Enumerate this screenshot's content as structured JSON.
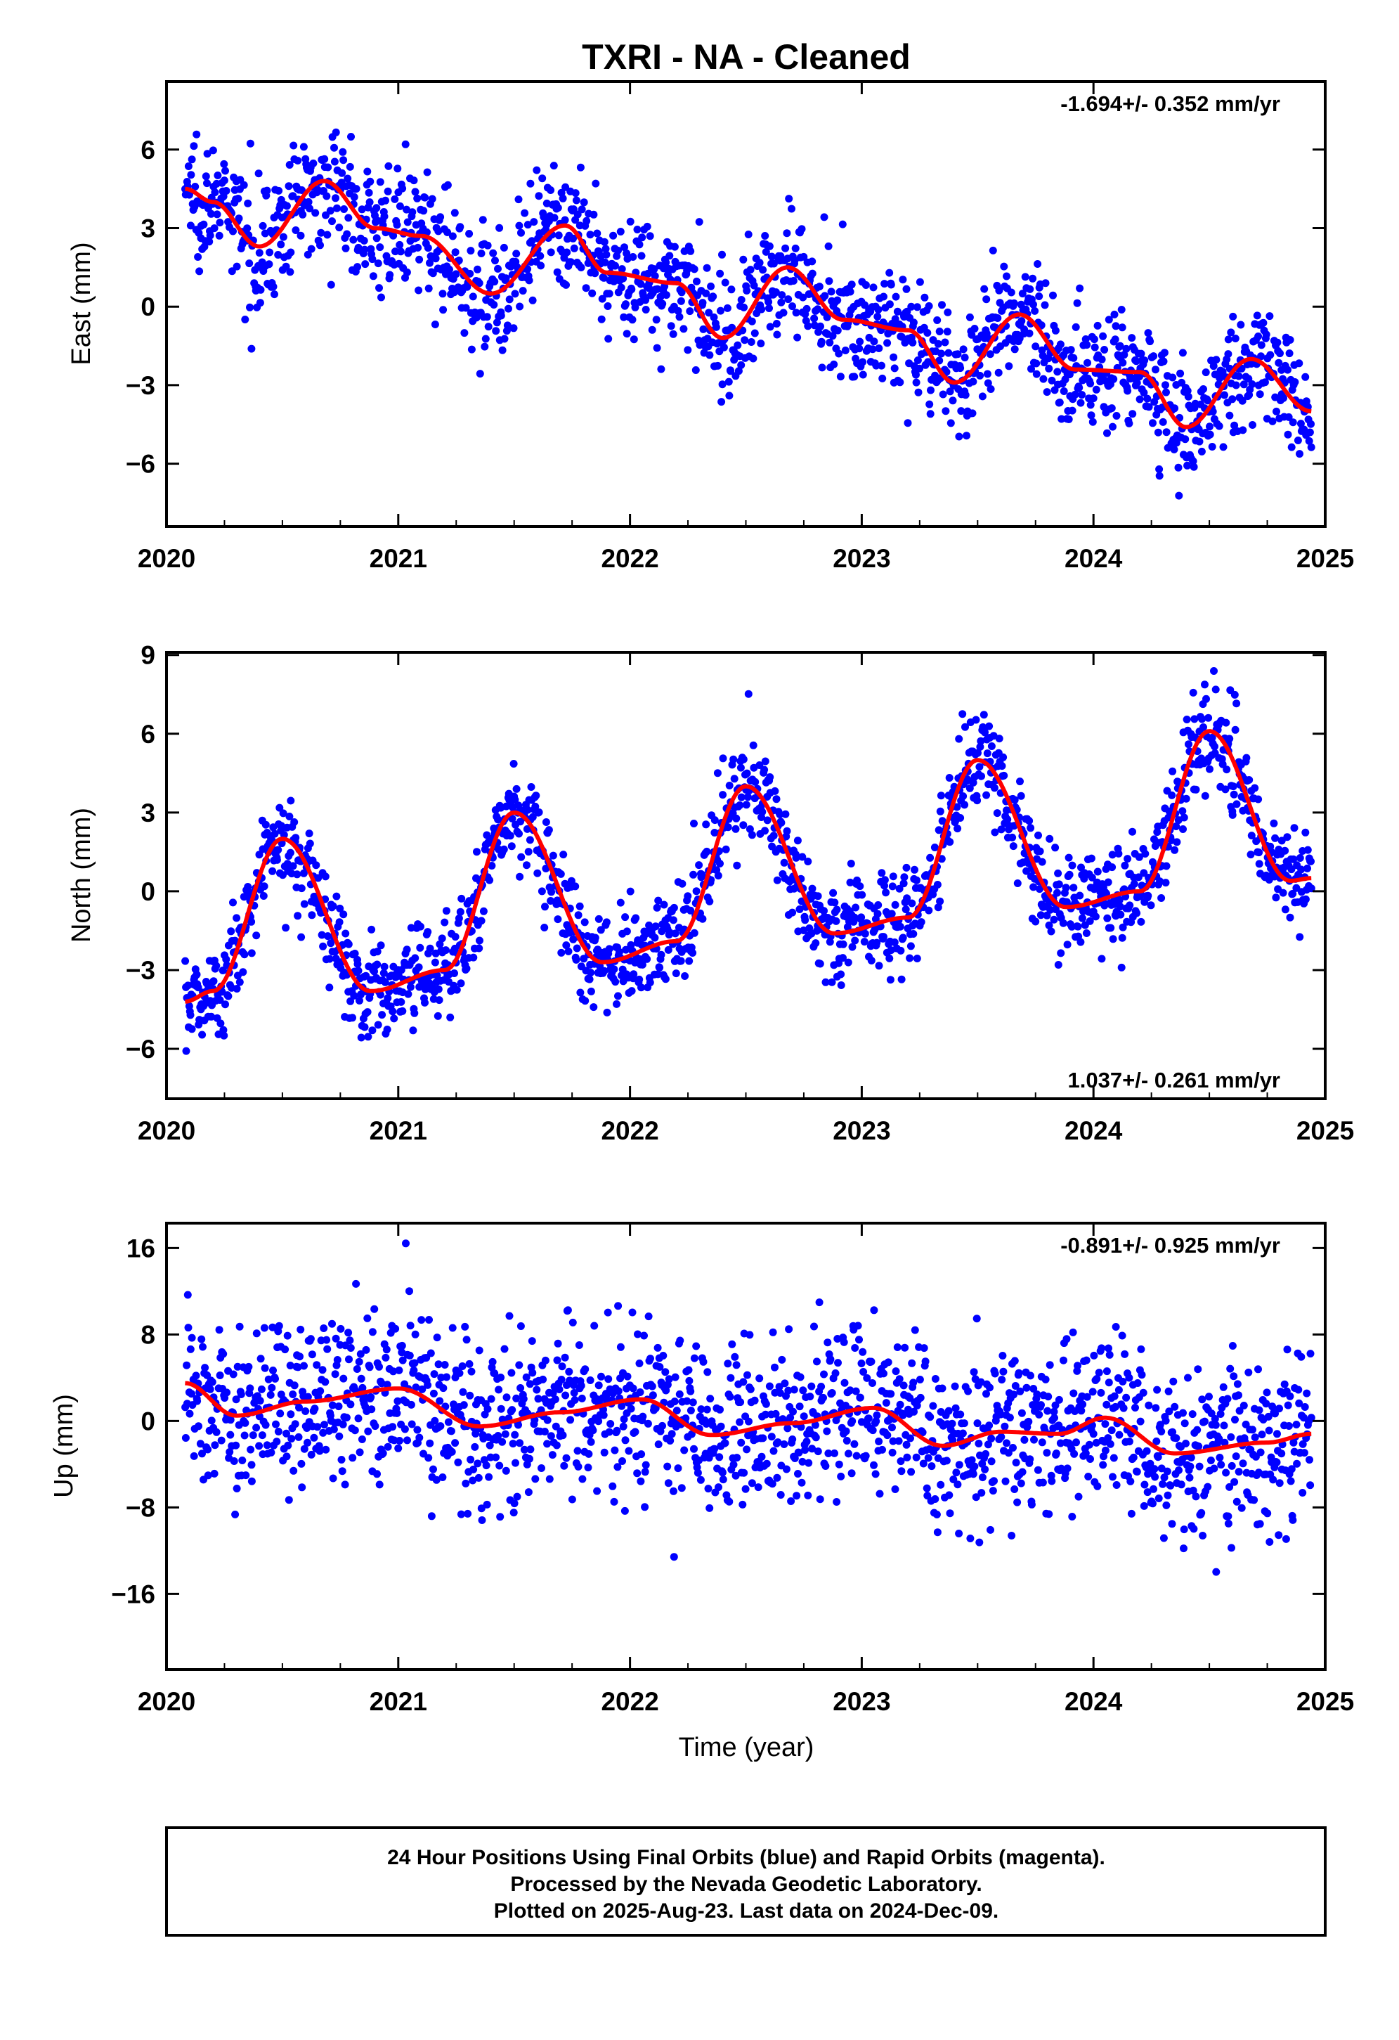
{
  "title": "TXRI  - NA - Cleaned",
  "xlabel": "Time (year)",
  "footer": {
    "line1": "24 Hour Positions Using Final Orbits (blue) and Rapid Orbits (magenta).",
    "line2": "Processed by the Nevada Geodetic Laboratory.",
    "line3": "Plotted on 2025-Aug-23. Last data on 2024-Dec-09."
  },
  "colors": {
    "points": "#0000ff",
    "fit": "#ff0000",
    "frame": "#000000"
  },
  "chart_data": [
    {
      "type": "scatter",
      "name": "east",
      "ylabel": "East (mm)",
      "rate_label": "-1.694+/- 0.352 mm/yr",
      "rate_position": "top-right",
      "xlim": [
        2020,
        2025
      ],
      "ylim": [
        -8.4,
        8.6
      ],
      "xticks": [
        2020,
        2021,
        2022,
        2023,
        2024,
        2025
      ],
      "yticks": [
        -6,
        -3,
        0,
        3,
        6
      ],
      "ytick_labels": [
        "−6",
        "−3",
        "0",
        "3",
        "6"
      ],
      "grid": false,
      "data_start": 2020.08,
      "data_end": 2024.94,
      "trend_mm_per_yr": -1.694,
      "noise_sd_mm": 1.15,
      "model": {
        "x": [
          2020.08,
          2020.2,
          2020.4,
          2020.68,
          2020.9,
          2021.1,
          2021.4,
          2021.72,
          2021.9,
          2022.2,
          2022.4,
          2022.68,
          2022.92,
          2023.2,
          2023.4,
          2023.68,
          2023.92,
          2024.2,
          2024.4,
          2024.68,
          2024.94
        ],
        "y": [
          4.5,
          4.0,
          2.3,
          4.8,
          3.0,
          2.7,
          0.5,
          3.1,
          1.3,
          0.9,
          -1.2,
          1.5,
          -0.5,
          -0.9,
          -2.9,
          -0.3,
          -2.4,
          -2.5,
          -4.6,
          -2.0,
          -4.0
        ]
      }
    },
    {
      "type": "scatter",
      "name": "north",
      "ylabel": "North (mm)",
      "rate_label": "1.037+/- 0.261 mm/yr",
      "rate_position": "bottom-right",
      "xlim": [
        2020,
        2025
      ],
      "ylim": [
        -7.9,
        9.1
      ],
      "xticks": [
        2020,
        2021,
        2022,
        2023,
        2024,
        2025
      ],
      "yticks": [
        -6,
        -3,
        0,
        3,
        6,
        9
      ],
      "ytick_labels": [
        "−6",
        "−3",
        "0",
        "3",
        "6",
        "9"
      ],
      "grid": false,
      "data_start": 2020.08,
      "data_end": 2024.94,
      "trend_mm_per_yr": 1.037,
      "noise_sd_mm": 0.95,
      "model": {
        "x": [
          2020.08,
          2020.2,
          2020.5,
          2020.88,
          2021.2,
          2021.5,
          2021.88,
          2022.2,
          2022.5,
          2022.88,
          2023.2,
          2023.5,
          2023.88,
          2024.2,
          2024.5,
          2024.85,
          2024.94
        ],
        "y": [
          -4.2,
          -3.8,
          2.0,
          -3.8,
          -3.0,
          3.0,
          -2.7,
          -1.9,
          4.0,
          -1.6,
          -1.0,
          5.0,
          -0.6,
          0.0,
          6.1,
          0.4,
          0.5
        ]
      }
    },
    {
      "type": "scatter",
      "name": "up",
      "ylabel": "Up (mm)",
      "rate_label": "-0.891+/- 0.925 mm/yr",
      "rate_position": "top-right",
      "xlim": [
        2020,
        2025
      ],
      "ylim": [
        -23,
        18.3
      ],
      "xticks": [
        2020,
        2021,
        2022,
        2023,
        2024,
        2025
      ],
      "yticks": [
        -16,
        -8,
        0,
        8,
        16
      ],
      "ytick_labels": [
        "−16",
        "−8",
        "0",
        "8",
        "16"
      ],
      "grid": false,
      "data_start": 2020.08,
      "data_end": 2024.94,
      "trend_mm_per_yr": -0.891,
      "noise_sd_mm": 3.9,
      "model": {
        "x": [
          2020.08,
          2020.3,
          2020.6,
          2021.0,
          2021.35,
          2021.7,
          2022.05,
          2022.35,
          2022.7,
          2023.05,
          2023.35,
          2023.6,
          2023.85,
          2024.05,
          2024.35,
          2024.75,
          2024.94
        ],
        "y": [
          3.5,
          0.5,
          1.8,
          3.0,
          -0.5,
          0.8,
          2.0,
          -1.3,
          -0.2,
          1.2,
          -2.3,
          -1.0,
          -1.2,
          0.3,
          -3.0,
          -2.0,
          -1.2
        ]
      }
    }
  ]
}
